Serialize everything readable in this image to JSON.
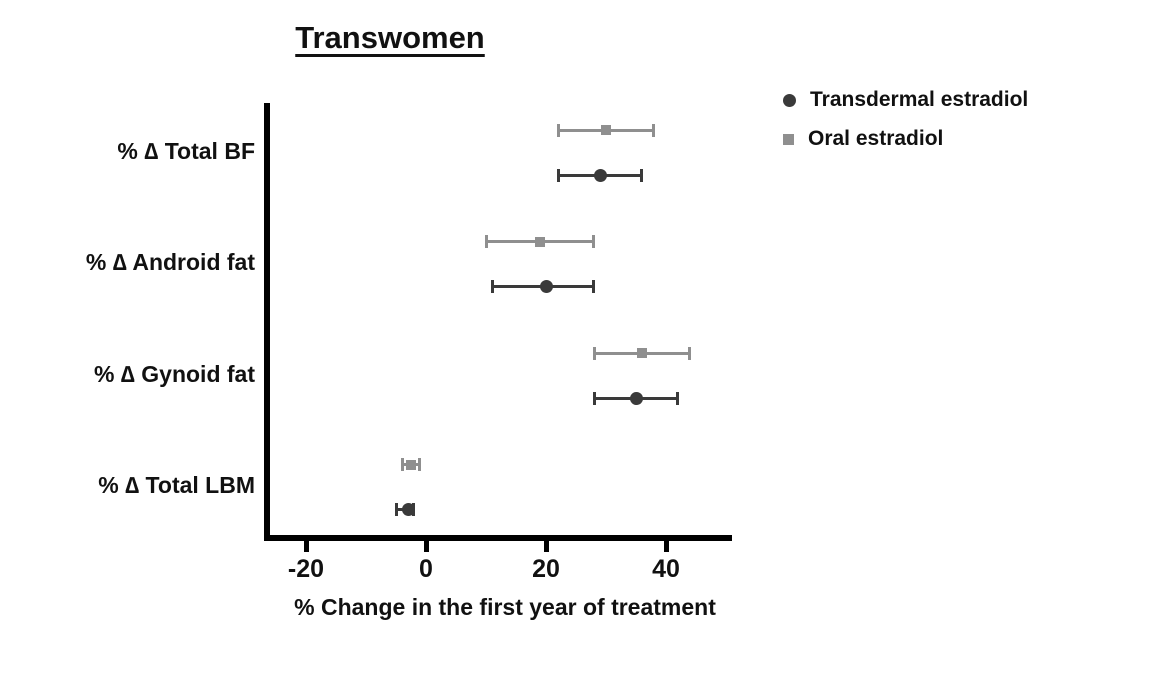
{
  "title": "Transwomen",
  "x_axis_label": "% Change in the first year of treatment",
  "legend": {
    "items": [
      {
        "name": "Transdermal estradiol",
        "marker": "circle",
        "color": "#3a3a3a"
      },
      {
        "name": "Oral estradiol",
        "marker": "square",
        "color": "#8f8f8f"
      }
    ]
  },
  "chart_data": {
    "type": "scatter",
    "subtype": "horizontal-dot-plot-with-error-bars",
    "title": "Transwomen",
    "xlabel": "% Change in the first year of treatment",
    "ylabel": "",
    "x_ticks": [
      -20,
      0,
      20,
      40
    ],
    "x_range": [
      -26,
      51
    ],
    "grid": false,
    "legend_position": "top-right",
    "categories": [
      "% ∆ Total BF",
      "% ∆ Android fat",
      "% ∆ Gynoid fat",
      "% ∆ Total LBM"
    ],
    "series": [
      {
        "name": "Oral estradiol",
        "marker": "square",
        "color": "#8f8f8f",
        "values": [
          30,
          19,
          36,
          -2.5
        ],
        "ci_low": [
          22,
          10,
          28,
          -4
        ],
        "ci_high": [
          38,
          28,
          44,
          -1
        ]
      },
      {
        "name": "Transdermal estradiol",
        "marker": "circle",
        "color": "#3a3a3a",
        "values": [
          29,
          20,
          35,
          -3
        ],
        "ci_low": [
          22,
          11,
          28,
          -5
        ],
        "ci_high": [
          36,
          28,
          42,
          -2
        ]
      }
    ]
  }
}
